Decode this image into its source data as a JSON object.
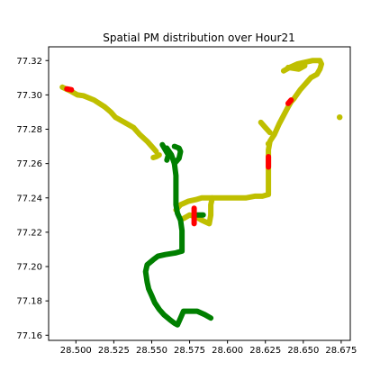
{
  "chart_data": {
    "type": "scatter",
    "title": "Spatial PM distribution over Hour21",
    "xlabel": "",
    "ylabel": "",
    "xlim": [
      28.482,
      28.681
    ],
    "ylim": [
      77.157,
      77.328
    ],
    "grid": false,
    "x_ticks": [
      28.5,
      28.525,
      28.55,
      28.575,
      28.6,
      28.625,
      28.65,
      28.675
    ],
    "x_tick_labels": [
      "28.500",
      "28.525",
      "28.550",
      "28.575",
      "28.600",
      "28.625",
      "28.650",
      "28.675"
    ],
    "y_ticks": [
      77.16,
      77.18,
      77.2,
      77.22,
      77.24,
      77.26,
      77.28,
      77.3,
      77.32
    ],
    "y_tick_labels": [
      "77.16",
      "77.18",
      "77.20",
      "77.22",
      "77.24",
      "77.26",
      "77.28",
      "77.30",
      "77.32"
    ],
    "colors": {
      "yellow": "#bfbf00",
      "green": "#007f00",
      "red": "#ff0000"
    },
    "series": [
      {
        "color": "yellow",
        "segments": [
          [
            [
              28.491,
              77.3045
            ],
            [
              28.497,
              77.302
            ],
            [
              28.501,
              77.3
            ],
            [
              28.505,
              77.2995
            ],
            [
              28.512,
              77.297
            ],
            [
              28.519,
              77.293
            ],
            [
              28.523,
              77.29
            ],
            [
              28.526,
              77.287
            ],
            [
              28.532,
              77.284
            ],
            [
              28.538,
              77.281
            ],
            [
              28.542,
              77.277
            ],
            [
              28.547,
              77.273
            ],
            [
              28.551,
              77.269
            ],
            [
              28.553,
              77.267
            ]
          ],
          [
            [
              28.555,
              77.265
            ],
            [
              28.553,
              77.264
            ],
            [
              28.551,
              77.2635
            ]
          ],
          [
            [
              28.566,
              77.233
            ],
            [
              28.569,
              77.236
            ],
            [
              28.574,
              77.238
            ],
            [
              28.579,
              77.239
            ],
            [
              28.583,
              77.24
            ],
            [
              28.588,
              77.24
            ],
            [
              28.592,
              77.24
            ],
            [
              28.598,
              77.24
            ],
            [
              28.605,
              77.24
            ],
            [
              28.612,
              77.24
            ],
            [
              28.618,
              77.241
            ],
            [
              28.623,
              77.241
            ],
            [
              28.627,
              77.242
            ],
            [
              28.627,
              77.255
            ],
            [
              28.627,
              77.268
            ],
            [
              28.628,
              77.273
            ],
            [
              28.631,
              77.277
            ],
            [
              28.634,
              77.283
            ],
            [
              28.637,
              77.288
            ],
            [
              28.64,
              77.293
            ],
            [
              28.642,
              77.296
            ],
            [
              28.644,
              77.298
            ],
            [
              28.648,
              77.303
            ],
            [
              28.652,
              77.307
            ],
            [
              28.655,
              77.31
            ],
            [
              28.659,
              77.312
            ],
            [
              28.661,
              77.315
            ],
            [
              28.662,
              77.318
            ],
            [
              28.661,
              77.32
            ],
            [
              28.656,
              77.32
            ],
            [
              28.651,
              77.319
            ],
            [
              28.646,
              77.318
            ],
            [
              28.641,
              77.316
            ],
            [
              28.637,
              77.314
            ]
          ],
          [
            [
              28.622,
              77.284
            ],
            [
              28.625,
              77.281
            ],
            [
              28.628,
              77.278
            ]
          ],
          [
            [
              28.64,
              77.316
            ],
            [
              28.647,
              77.315
            ],
            [
              28.651,
              77.317
            ]
          ],
          [
            [
              28.571,
              77.228
            ],
            [
              28.575,
              77.23
            ],
            [
              28.579,
              77.229
            ],
            [
              28.583,
              77.227
            ],
            [
              28.588,
              77.225
            ],
            [
              28.589,
              77.23
            ],
            [
              28.589,
              77.236
            ],
            [
              28.59,
              77.24
            ]
          ]
        ],
        "points": [
          [
            28.674,
            77.287
          ],
          [
            28.627,
            77.2715
          ]
        ]
      },
      {
        "color": "green",
        "segments": [
          [
            [
              28.565,
              77.27
            ],
            [
              28.568,
              77.269
            ],
            [
              28.569,
              77.267
            ],
            [
              28.568,
              77.263
            ],
            [
              28.565,
              77.26
            ]
          ],
          [
            [
              28.56,
              77.269
            ],
            [
              28.563,
              77.265
            ],
            [
              28.565,
              77.26
            ],
            [
              28.566,
              77.253
            ],
            [
              28.566,
              77.248
            ],
            [
              28.566,
              77.24
            ],
            [
              28.566,
              77.236
            ],
            [
              28.567,
              77.231
            ],
            [
              28.569,
              77.227
            ],
            [
              28.57,
              77.221
            ],
            [
              28.57,
              77.214
            ],
            [
              28.57,
              77.209
            ],
            [
              28.566,
              77.208
            ],
            [
              28.559,
              77.207
            ],
            [
              28.554,
              77.206
            ],
            [
              28.551,
              77.204
            ],
            [
              28.547,
              77.201
            ],
            [
              28.546,
              77.197
            ],
            [
              28.547,
              77.191
            ],
            [
              28.548,
              77.187
            ],
            [
              28.55,
              77.183
            ],
            [
              28.552,
              77.179
            ],
            [
              28.555,
              77.175
            ],
            [
              28.558,
              77.172
            ],
            [
              28.562,
              77.169
            ],
            [
              28.565,
              77.167
            ],
            [
              28.567,
              77.166
            ],
            [
              28.569,
              77.17
            ],
            [
              28.571,
              77.174
            ],
            [
              28.575,
              77.174
            ],
            [
              28.58,
              77.174
            ],
            [
              28.585,
              77.172
            ],
            [
              28.589,
              77.17
            ]
          ],
          [
            [
              28.557,
              77.271
            ],
            [
              28.559,
              77.268
            ],
            [
              28.561,
              77.265
            ],
            [
              28.56,
              77.262
            ]
          ],
          [
            [
              28.58,
              77.23
            ],
            [
              28.584,
              77.23
            ]
          ]
        ],
        "points": []
      },
      {
        "color": "red",
        "segments": [
          [
            [
              28.494,
              77.3035
            ],
            [
              28.497,
              77.303
            ]
          ],
          [
            [
              28.578,
              77.234
            ],
            [
              28.578,
              77.225
            ]
          ],
          [
            [
              28.627,
              77.258
            ],
            [
              28.627,
              77.264
            ]
          ],
          [
            [
              28.64,
              77.295
            ],
            [
              28.642,
              77.297
            ]
          ]
        ],
        "points": []
      }
    ]
  }
}
